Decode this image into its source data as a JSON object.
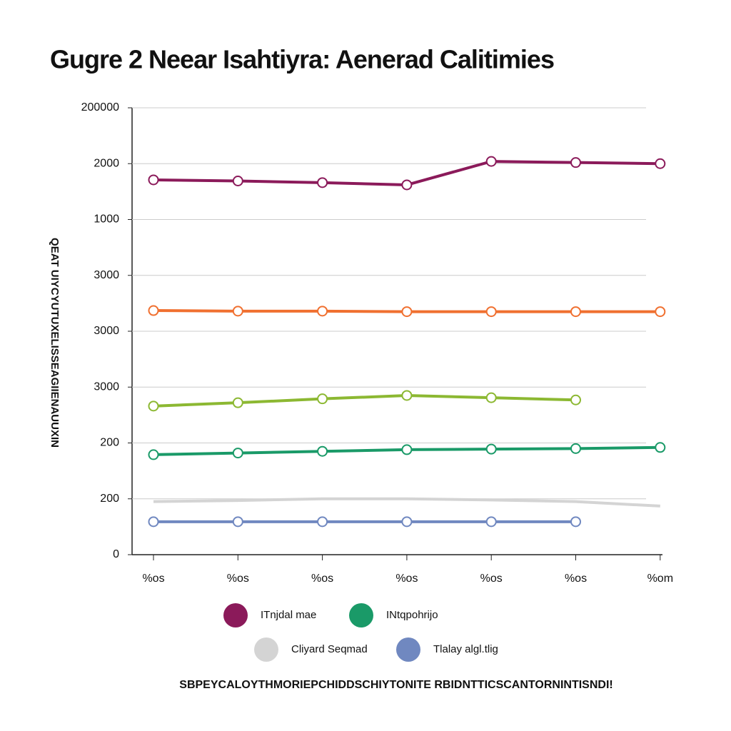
{
  "chart_data": {
    "type": "line",
    "title": "Gugre 2 Neear Isahtiyra: Aenerad Calitimies",
    "y_label": "QEAT UIYCYUTUXELISSEAGIIENAUUXIN",
    "footnote": "SBPEYCALOYTHMORIEPCHIDDSCHIYTONITE RBIDNTTICSCANTORNINTISNDI!",
    "categories": [
      "%os",
      "%os",
      "%os",
      "%os",
      "%os",
      "%os",
      "%om"
    ],
    "ylim": [
      0,
      8
    ],
    "yticks": [
      0,
      {
        "value": 1,
        "label": "200"
      },
      {
        "value": 2,
        "label": "200"
      },
      {
        "value": 3,
        "label": "3000"
      },
      {
        "value": 4,
        "label": "3000"
      },
      {
        "value": 5,
        "label": "3000"
      },
      {
        "value": 6,
        "label": "1000"
      },
      {
        "value": 7,
        "label": "2000"
      },
      {
        "value": 8,
        "label": "200000"
      }
    ],
    "grid": true,
    "series": [
      {
        "name": "ITnjdal mae",
        "color": "#8b1a5a",
        "values": [
          6.71,
          6.69,
          6.66,
          6.62,
          7.04,
          7.02,
          7.0
        ]
      },
      {
        "color": "#f07030",
        "values": [
          4.37,
          4.36,
          4.36,
          4.35,
          4.35,
          4.35,
          4.35
        ]
      },
      {
        "color": "#8cb832",
        "values": [
          2.66,
          2.72,
          2.79,
          2.85,
          2.81,
          2.77,
          null
        ]
      },
      {
        "name": "INtqpohrijo",
        "color": "#1a9a68",
        "values": [
          1.79,
          1.82,
          1.85,
          1.88,
          1.89,
          1.9,
          1.92
        ]
      },
      {
        "name": "Cliyard Seqmad",
        "color": "#d4d4d4",
        "values": [
          0.95,
          0.97,
          1.0,
          1.0,
          0.98,
          0.95,
          0.87
        ]
      },
      {
        "name": "Tlalay algl.tlig",
        "color": "#7088c0",
        "values": [
          0.59,
          0.59,
          0.59,
          0.59,
          0.59,
          0.59,
          null
        ]
      }
    ]
  }
}
